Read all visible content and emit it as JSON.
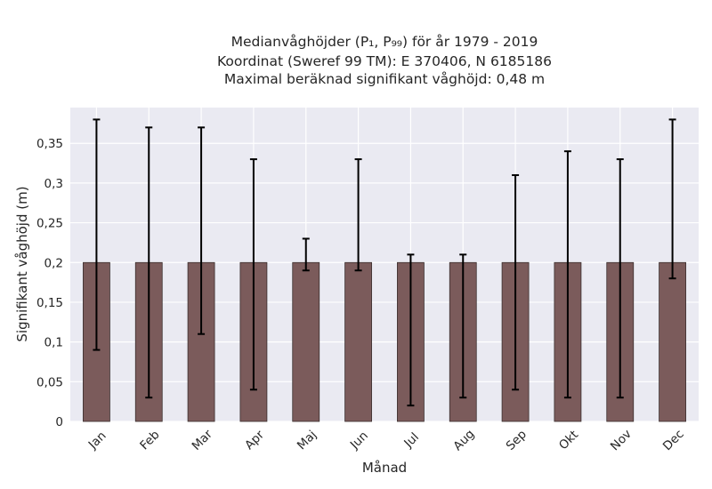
{
  "chart_data": {
    "type": "bar",
    "title_lines": [
      "Medianvåghöjder (P₁, P₉₉) för år 1979 - 2019",
      "Koordinat (Sweref 99 TM): E 370406, N 6185186",
      "Maximal beräknad signifikant våghöjd: 0,48 m"
    ],
    "xlabel": "Månad",
    "ylabel": "Signifikant våghöjd (m)",
    "categories": [
      "Jan",
      "Feb",
      "Mar",
      "Apr",
      "Maj",
      "Jun",
      "Jul",
      "Aug",
      "Sep",
      "Okt",
      "Nov",
      "Dec"
    ],
    "values": [
      0.2,
      0.2,
      0.2,
      0.2,
      0.2,
      0.2,
      0.2,
      0.2,
      0.2,
      0.2,
      0.2,
      0.2
    ],
    "error_low": [
      0.09,
      0.03,
      0.11,
      0.04,
      0.19,
      0.19,
      0.02,
      0.03,
      0.04,
      0.03,
      0.03,
      0.18
    ],
    "error_high": [
      0.38,
      0.37,
      0.37,
      0.33,
      0.23,
      0.33,
      0.21,
      0.21,
      0.31,
      0.34,
      0.33,
      0.38
    ],
    "ylim": [
      0,
      0.395
    ],
    "yticks": [
      0,
      0.05,
      0.1,
      0.15,
      0.2,
      0.25,
      0.3,
      0.35
    ],
    "ytick_labels": [
      "0",
      "0,05",
      "0,1",
      "0,15",
      "0,2",
      "0,25",
      "0,3",
      "0,35"
    ],
    "grid": true,
    "colors": {
      "bar": "#7b5b5b",
      "bar_edge": "#3a2e2e",
      "error": "#000000",
      "plot_bg": "#eaeaf2",
      "grid": "#ffffff"
    }
  }
}
